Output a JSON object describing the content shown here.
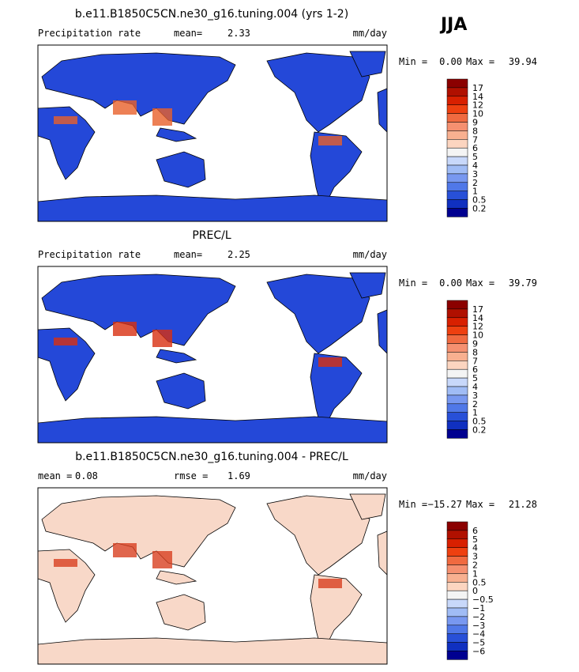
{
  "season": "JJA",
  "panels": [
    {
      "title": "b.e11.B1850C5CN.ne30_g16.tuning.004 (yrs 1-2)",
      "left": [
        "Precipitation rate"
      ],
      "center": [
        "mean=",
        "2.33"
      ],
      "units": "mm/day",
      "min_label": "Min =",
      "min_value": "0.00",
      "max_label": "Max =",
      "max_value": "39.94",
      "land_color": "#2448d8",
      "hot_color": "#e8602a",
      "colorbar": {
        "labels": [
          "17",
          "14",
          "12",
          "10",
          "9",
          "8",
          "7",
          "6",
          "5",
          "4",
          "3",
          "2",
          "1",
          "0.5",
          "0.2"
        ],
        "colors": [
          "#8b0000",
          "#b01000",
          "#d82000",
          "#ee4010",
          "#f06a40",
          "#f59070",
          "#f8b090",
          "#fcd5c0",
          "#f4f4f4",
          "#c8d8fa",
          "#a0bcf5",
          "#7898f0",
          "#5078e8",
          "#2850d8",
          "#1030c0",
          "#000090"
        ]
      }
    },
    {
      "title": "PREC/L",
      "left": [
        "Precipitation rate"
      ],
      "center": [
        "mean=",
        "2.25"
      ],
      "units": "mm/day",
      "min_label": "Min =",
      "min_value": "0.00",
      "max_label": "Max =",
      "max_value": "39.79",
      "land_color": "#2448d8",
      "hot_color": "#d83010",
      "colorbar": {
        "labels": [
          "17",
          "14",
          "12",
          "10",
          "9",
          "8",
          "7",
          "6",
          "5",
          "4",
          "3",
          "2",
          "1",
          "0.5",
          "0.2"
        ],
        "colors": [
          "#8b0000",
          "#b01000",
          "#d82000",
          "#ee4010",
          "#f06a40",
          "#f59070",
          "#f8b090",
          "#fcd5c0",
          "#f4f4f4",
          "#c8d8fa",
          "#a0bcf5",
          "#7898f0",
          "#5078e8",
          "#2850d8",
          "#1030c0",
          "#000090"
        ]
      }
    },
    {
      "title": "b.e11.B1850C5CN.ne30_g16.tuning.004 - PREC/L",
      "left": [
        "mean =",
        "0.08"
      ],
      "center": [
        "rmse =",
        "1.69"
      ],
      "units": "mm/day",
      "min_label": "Min =",
      "min_value": "−15.27",
      "max_label": "Max =",
      "max_value": "21.28",
      "land_color": "#f8d8c8",
      "hot_color": "#d84020",
      "colorbar": {
        "labels": [
          "6",
          "5",
          "4",
          "3",
          "2",
          "1",
          "0.5",
          "0",
          "−0.5",
          "−1",
          "−2",
          "−3",
          "−4",
          "−5",
          "−6"
        ],
        "colors": [
          "#8b0000",
          "#b01000",
          "#d82000",
          "#ee4010",
          "#f06a40",
          "#f59070",
          "#f8b090",
          "#fcd5c0",
          "#f4f4f4",
          "#c8d8fa",
          "#a0bcf5",
          "#7898f0",
          "#5078e8",
          "#2850d8",
          "#1030c0",
          "#000090"
        ]
      }
    }
  ]
}
